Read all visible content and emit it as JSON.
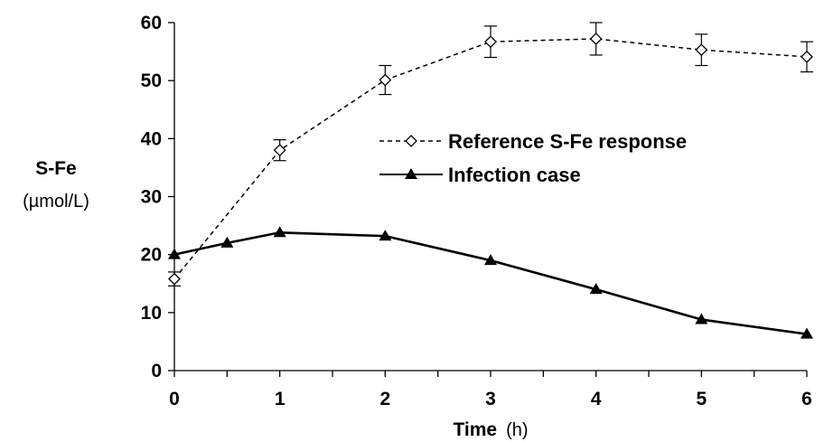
{
  "chart_data": {
    "type": "line",
    "ylabel": "S-Fe",
    "ylabel_unit": "(µmol/L)",
    "xlabel": "Time",
    "xlabel_unit": "(h)",
    "xlim": [
      0,
      6
    ],
    "ylim": [
      0,
      60
    ],
    "x_ticks": [
      "0",
      "1",
      "2",
      "3",
      "4",
      "5",
      "6"
    ],
    "y_ticks": [
      "0",
      "10",
      "20",
      "30",
      "40",
      "50",
      "60"
    ],
    "grid": false,
    "legend_position": "center-right",
    "series": [
      {
        "name": "Reference S-Fe response",
        "style": "dashed",
        "marker": "open-diamond",
        "color": "#000000",
        "x": [
          0,
          1,
          2,
          3,
          4,
          5,
          6
        ],
        "y": [
          15.8,
          38,
          50.1,
          56.7,
          57.2,
          55.3,
          54.1
        ],
        "error": [
          1.2,
          1.8,
          2.5,
          2.7,
          2.8,
          2.7,
          2.6
        ]
      },
      {
        "name": "Infection case",
        "style": "solid",
        "marker": "filled-triangle",
        "color": "#000000",
        "x": [
          0,
          0.5,
          1,
          2,
          3,
          4,
          5,
          6
        ],
        "y": [
          20,
          22,
          23.8,
          23.2,
          19,
          14,
          8.8,
          6.3
        ]
      }
    ]
  }
}
